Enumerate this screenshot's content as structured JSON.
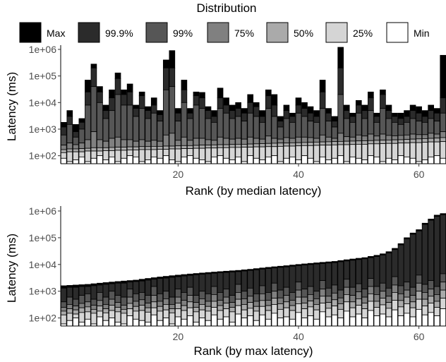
{
  "legend": {
    "title": "Distribution",
    "items": [
      {
        "key": "max",
        "label": "Max",
        "color": "#000000"
      },
      {
        "key": "p999",
        "label": "99.9%",
        "color": "#2b2b2b"
      },
      {
        "key": "p99",
        "label": "99%",
        "color": "#565656"
      },
      {
        "key": "p75",
        "label": "75%",
        "color": "#808080"
      },
      {
        "key": "p50",
        "label": "50%",
        "color": "#aaaaaa"
      },
      {
        "key": "p25",
        "label": "25%",
        "color": "#d5d5d5"
      },
      {
        "key": "min",
        "label": "Min",
        "color": "#ffffff"
      }
    ]
  },
  "chart_data": [
    {
      "type": "bar",
      "subtype": "stacked-percentile",
      "ylabel": "Latency (ms)",
      "xlabel": "Rank (by median latency)",
      "yscale": "log",
      "ylim": [
        50,
        1000000
      ],
      "yticks": [
        100,
        1000,
        10000,
        100000,
        1000000
      ],
      "ytick_labels": [
        "1e+02",
        "1e+03",
        "1e+04",
        "1e+05",
        "1e+06"
      ],
      "xlim": [
        0.5,
        64.5
      ],
      "xticks": [
        20,
        40,
        60
      ],
      "xtick_labels": [
        "20",
        "40",
        "60"
      ],
      "grid": false,
      "max": [
        1800,
        5000,
        1500,
        2500,
        70000,
        280000,
        40000,
        8000,
        30000,
        130000,
        30000,
        50000,
        8000,
        25000,
        7000,
        15000,
        5000,
        400000,
        900000,
        6000,
        70000,
        6000,
        25000,
        24000,
        7000,
        5000,
        35000,
        15000,
        8000,
        10000,
        6000,
        20000,
        10000,
        5000,
        30000,
        20000,
        3000,
        8000,
        4000,
        15000,
        10000,
        7000,
        5000,
        70000,
        6000,
        3000,
        1200000,
        8000,
        4000,
        12000,
        8000,
        25000,
        4000,
        30000,
        8000,
        4000,
        4000,
        5000,
        8000,
        7000,
        5000,
        8000,
        6000,
        600000,
        7000
      ],
      "p999": [
        1200,
        3000,
        800,
        1800,
        25000,
        200000,
        25000,
        5000,
        15000,
        80000,
        20000,
        25000,
        6000,
        18000,
        5000,
        8000,
        3500,
        200000,
        200000,
        4000,
        30000,
        4000,
        18000,
        15000,
        5000,
        3000,
        15000,
        8000,
        5000,
        6000,
        4000,
        10000,
        7000,
        3000,
        18000,
        8000,
        2000,
        5000,
        3000,
        8000,
        6000,
        4000,
        3000,
        25000,
        4000,
        2000,
        200000,
        5000,
        3000,
        8000,
        5000,
        15000,
        3000,
        20000,
        5000,
        3000,
        2500,
        3000,
        5000,
        4000,
        3000,
        5000,
        4000,
        15000,
        5000
      ],
      "p99": [
        600,
        1500,
        500,
        1000,
        8000,
        40000,
        10000,
        2500,
        5000,
        20000,
        8000,
        8000,
        3000,
        6000,
        2500,
        4000,
        2000,
        30000,
        40000,
        2000,
        10000,
        2500,
        8000,
        6000,
        2500,
        1800,
        6000,
        4000,
        2500,
        3000,
        2000,
        4000,
        3000,
        1800,
        6000,
        3000,
        1200,
        2500,
        1800,
        4000,
        3000,
        2000,
        1800,
        6000,
        2000,
        1200,
        20000,
        2500,
        1800,
        4000,
        2500,
        5000,
        1800,
        6000,
        2500,
        1800,
        1500,
        1800,
        2500,
        2000,
        1800,
        2500,
        2000,
        4000,
        2500
      ],
      "p75": [
        250,
        300,
        260,
        300,
        400,
        800,
        400,
        350,
        450,
        500,
        400,
        400,
        350,
        400,
        350,
        380,
        350,
        600,
        700,
        380,
        500,
        380,
        450,
        450,
        400,
        380,
        500,
        450,
        420,
        450,
        420,
        500,
        450,
        420,
        550,
        450,
        420,
        480,
        450,
        500,
        500,
        480,
        450,
        600,
        500,
        450,
        700,
        520,
        500,
        600,
        550,
        650,
        550,
        650,
        580,
        560,
        580,
        600,
        650,
        620,
        620,
        700,
        650,
        800,
        2500
      ],
      "p50": [
        170,
        180,
        180,
        185,
        190,
        200,
        200,
        200,
        205,
        210,
        210,
        215,
        215,
        220,
        220,
        225,
        225,
        230,
        230,
        235,
        240,
        240,
        245,
        250,
        250,
        255,
        260,
        260,
        265,
        270,
        270,
        275,
        280,
        285,
        290,
        295,
        300,
        300,
        305,
        310,
        315,
        320,
        325,
        330,
        335,
        340,
        345,
        350,
        355,
        360,
        365,
        370,
        380,
        385,
        390,
        395,
        400,
        410,
        420,
        430,
        440,
        450,
        460,
        480,
        1000
      ],
      "p25": [
        130,
        140,
        140,
        140,
        150,
        150,
        150,
        155,
        155,
        160,
        160,
        165,
        165,
        170,
        170,
        170,
        175,
        175,
        180,
        180,
        185,
        185,
        190,
        190,
        195,
        195,
        200,
        200,
        205,
        205,
        210,
        210,
        215,
        215,
        220,
        220,
        225,
        230,
        230,
        235,
        240,
        240,
        245,
        250,
        250,
        255,
        260,
        260,
        265,
        270,
        270,
        280,
        280,
        285,
        290,
        290,
        300,
        300,
        310,
        310,
        320,
        330,
        330,
        340,
        400
      ],
      "min": [
        80,
        60,
        70,
        90,
        60,
        80,
        100,
        70,
        90,
        60,
        80,
        100,
        90,
        60,
        70,
        90,
        80,
        100,
        70,
        60,
        90,
        100,
        80,
        70,
        60,
        90,
        100,
        80,
        70,
        90,
        60,
        100,
        80,
        70,
        90,
        100,
        60,
        80,
        90,
        70,
        100,
        80,
        60,
        90,
        70,
        80,
        100,
        60,
        90,
        80,
        70,
        100,
        90,
        60,
        80,
        70,
        100,
        90,
        80,
        60,
        70,
        90,
        100,
        80,
        90
      ]
    },
    {
      "type": "bar",
      "subtype": "stacked-percentile",
      "ylabel": "Latency (ms)",
      "xlabel": "Rank (by max latency)",
      "yscale": "log",
      "ylim": [
        50,
        1000000
      ],
      "yticks": [
        100,
        1000,
        10000,
        100000,
        1000000
      ],
      "ytick_labels": [
        "1e+02",
        "1e+03",
        "1e+04",
        "1e+05",
        "1e+06"
      ],
      "xlim": [
        0.5,
        64.5
      ],
      "xticks": [
        20,
        40,
        60
      ],
      "xtick_labels": [
        "20",
        "40",
        "60"
      ],
      "grid": false,
      "max": [
        1600,
        1650,
        1700,
        1750,
        1800,
        1900,
        2000,
        2100,
        2200,
        2300,
        2400,
        2500,
        2600,
        2800,
        3000,
        3200,
        3400,
        3600,
        3800,
        4000,
        4200,
        4400,
        4600,
        4800,
        5000,
        5200,
        5400,
        5600,
        5800,
        6000,
        6300,
        6600,
        7000,
        7400,
        7800,
        8200,
        8600,
        9000,
        9500,
        10000,
        10500,
        11000,
        11500,
        12000,
        12500,
        13000,
        14000,
        15000,
        16000,
        17000,
        18000,
        20000,
        22000,
        25000,
        30000,
        40000,
        60000,
        100000,
        150000,
        200000,
        350000,
        500000,
        700000,
        800000,
        900000
      ],
      "p999": [
        1300,
        1400,
        1400,
        1500,
        1500,
        1600,
        1700,
        1800,
        1900,
        2000,
        2000,
        2200,
        2300,
        2400,
        2600,
        2800,
        3000,
        3100,
        3300,
        3500,
        3700,
        3900,
        4100,
        4300,
        4500,
        4700,
        4900,
        5000,
        5200,
        5400,
        5700,
        6000,
        6300,
        6700,
        7000,
        7400,
        7800,
        8100,
        8600,
        9000,
        9500,
        9900,
        10400,
        10800,
        11300,
        11700,
        12600,
        13500,
        14400,
        15300,
        16200,
        18000,
        19800,
        22500,
        27000,
        36000,
        54000,
        90000,
        135000,
        180000,
        315000,
        450000,
        630000,
        720000,
        810000
      ],
      "p99": [
        400,
        600,
        500,
        700,
        800,
        500,
        900,
        600,
        1000,
        700,
        600,
        1200,
        800,
        900,
        700,
        1500,
        800,
        1000,
        600,
        1200,
        900,
        1400,
        700,
        1000,
        800,
        1500,
        900,
        1200,
        700,
        1800,
        1000,
        1300,
        800,
        1600,
        900,
        2000,
        1100,
        1400,
        900,
        2200,
        1200,
        1500,
        1000,
        2500,
        1300,
        1700,
        1100,
        2800,
        1400,
        1900,
        1200,
        3000,
        1500,
        2000,
        1300,
        3500,
        1600,
        2200,
        1400,
        4000,
        1800,
        2500,
        1500,
        4500,
        1000
      ],
      "p75": [
        250,
        320,
        280,
        350,
        400,
        300,
        450,
        320,
        500,
        380,
        300,
        600,
        420,
        480,
        360,
        700,
        420,
        520,
        320,
        600,
        460,
        700,
        380,
        520,
        420,
        750,
        460,
        600,
        380,
        900,
        520,
        650,
        420,
        800,
        460,
        1000,
        560,
        700,
        460,
        1100,
        600,
        750,
        520,
        1200,
        650,
        850,
        560,
        1400,
        700,
        950,
        600,
        1500,
        750,
        1000,
        650,
        1700,
        800,
        1100,
        700,
        2000,
        900,
        1200,
        750,
        2200,
        500
      ],
      "p50": [
        180,
        220,
        200,
        240,
        260,
        210,
        280,
        220,
        300,
        250,
        210,
        350,
        270,
        300,
        240,
        400,
        270,
        320,
        220,
        360,
        290,
        400,
        250,
        320,
        270,
        420,
        290,
        360,
        250,
        500,
        320,
        380,
        270,
        450,
        290,
        550,
        340,
        400,
        290,
        600,
        360,
        430,
        320,
        650,
        380,
        480,
        340,
        750,
        400,
        520,
        360,
        800,
        420,
        550,
        380,
        900,
        450,
        600,
        400,
        1000,
        500,
        650,
        420,
        1100,
        300
      ],
      "p25": [
        130,
        150,
        140,
        160,
        170,
        150,
        180,
        155,
        190,
        170,
        150,
        220,
        180,
        190,
        165,
        240,
        180,
        200,
        155,
        220,
        190,
        240,
        170,
        200,
        180,
        250,
        190,
        220,
        170,
        290,
        200,
        230,
        180,
        270,
        190,
        320,
        210,
        240,
        190,
        340,
        220,
        260,
        200,
        360,
        230,
        280,
        210,
        400,
        240,
        300,
        220,
        420,
        250,
        310,
        230,
        460,
        260,
        340,
        240,
        500,
        280,
        360,
        250,
        550,
        200
      ],
      "min": [
        60,
        80,
        100,
        70,
        90,
        60,
        110,
        80,
        100,
        70,
        60,
        120,
        90,
        80,
        70,
        130,
        80,
        100,
        60,
        110,
        90,
        120,
        70,
        100,
        80,
        130,
        90,
        110,
        70,
        140,
        100,
        120,
        80,
        130,
        90,
        150,
        100,
        110,
        90,
        160,
        100,
        120,
        90,
        170,
        110,
        130,
        100,
        180,
        110,
        140,
        100,
        190,
        120,
        140,
        110,
        200,
        120,
        150,
        110,
        210,
        130,
        160,
        120,
        220,
        100
      ]
    }
  ]
}
